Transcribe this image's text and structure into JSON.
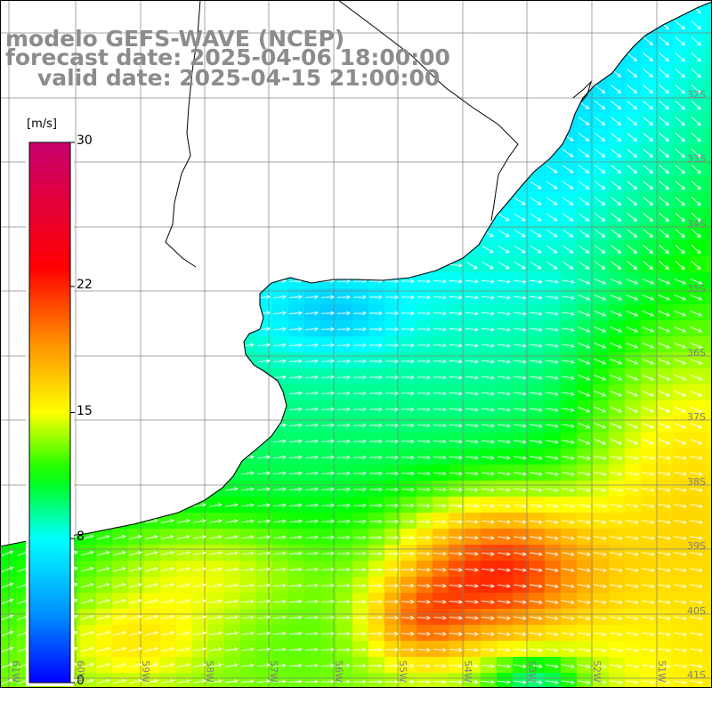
{
  "titles": {
    "model": "modelo GEFS-WAVE (NCEP)",
    "forecast": "forecast date: 2025-04-06 18:00:00",
    "valid": "valid date: 2025-04-15 21:00:00"
  },
  "colorbar": {
    "unit": "[m/s]",
    "ticks": [
      {
        "value": 30,
        "label": "30"
      },
      {
        "value": 22,
        "label": "22"
      },
      {
        "value": 15,
        "label": "15"
      },
      {
        "value": 8,
        "label": "8"
      },
      {
        "value": 0,
        "label": "0"
      }
    ],
    "range": [
      0,
      30
    ],
    "colors": [
      "#0000ff",
      "#0096ff",
      "#00ffff",
      "#00ff00",
      "#ffff00",
      "#ff8c00",
      "#ff0000",
      "#c8006e"
    ]
  },
  "grid": {
    "lat_labels": [
      "32S",
      "33S",
      "34S",
      "35S",
      "36S",
      "37S",
      "38S",
      "39S",
      "40S",
      "41S"
    ],
    "lon_labels": [
      "61W",
      "60W",
      "59W",
      "58W",
      "57W",
      "56W",
      "55W",
      "54W",
      "53W",
      "52W",
      "51W"
    ]
  },
  "map": {
    "extent": {
      "lon": [
        -61.2,
        -50.7
      ],
      "lat": [
        -41.3,
        -31.0
      ]
    },
    "land_color": "#ffffff",
    "coastline_color": "#000000",
    "grid_color": "#808080",
    "arrow_color": "#ffffff"
  }
}
